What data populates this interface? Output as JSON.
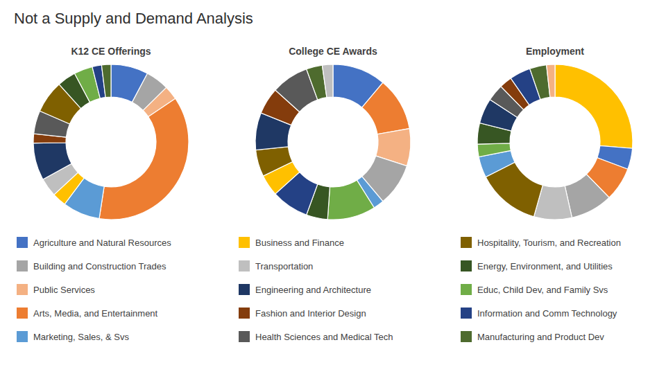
{
  "chart_data": [
    {
      "type": "pie",
      "title": "Not a Supply and Demand Analysis",
      "subtitle": "K12 CE Offerings",
      "legend": "bottom",
      "categories": [
        "Agriculture and Natural Resources",
        "Building and Construction Trades",
        "Public Services",
        "Arts, Media, and Entertainment",
        "Marketing, Sales, & Svs",
        "Business and Finance",
        "Transportation",
        "Engineering and Architecture",
        "Fashion and Interior Design",
        "Health Sciences and Medical Tech",
        "Hospitality, Tourism, and Recreation",
        "Energy, Environment, and Utilities",
        "Educ, Child Dev, and Family Svs",
        "Information and Comm Technology",
        "Manufacturing and Product Dev"
      ],
      "values": [
        8,
        5,
        3,
        38,
        8,
        3,
        4,
        8,
        2,
        5,
        7,
        4,
        4,
        2,
        2
      ],
      "colors": [
        "#4472c4",
        "#a5a5a5",
        "#f4b183",
        "#ed7d31",
        "#5b9bd5",
        "#ffc000",
        "#bfbfbf",
        "#1f3864",
        "#843c0c",
        "#595959",
        "#7f6000",
        "#375623",
        "#70ad47",
        "#244185",
        "#4e6b2e"
      ]
    },
    {
      "type": "pie",
      "subtitle": "College CE Awards",
      "categories": [
        "Agriculture and Natural Resources",
        "Arts, Media, and Entertainment",
        "Public Services",
        "Building and Construction Trades",
        "Marketing, Sales, & Svs",
        "Educ, Child Dev, and Family Svs",
        "Energy, Environment, and Utilities",
        "Information and Comm Technology",
        "Business and Finance",
        "Hospitality, Tourism, and Recreation",
        "Engineering and Architecture",
        "Fashion and Interior Design",
        "Health Sciences and Medical Tech",
        "Manufacturing and Product Dev",
        "Transportation"
      ],
      "values": [
        10,
        10,
        7,
        8,
        2,
        9,
        4,
        7,
        4,
        5,
        7,
        5,
        7,
        3,
        2
      ],
      "colors": [
        "#4472c4",
        "#ed7d31",
        "#f4b183",
        "#a5a5a5",
        "#5b9bd5",
        "#70ad47",
        "#375623",
        "#244185",
        "#ffc000",
        "#7f6000",
        "#1f3864",
        "#843c0c",
        "#595959",
        "#4e6b2e",
        "#bfbfbf"
      ]
    },
    {
      "type": "pie",
      "subtitle": "Employment",
      "categories": [
        "Business and Finance",
        "Agriculture and Natural Resources",
        "Arts, Media, and Entertainment",
        "Building and Construction Trades",
        "Transportation",
        "Hospitality, Tourism, and Recreation",
        "Marketing, Sales, & Svs",
        "Educ, Child Dev, and Family Svs",
        "Energy, Environment, and Utilities",
        "Engineering and Architecture",
        "Health Sciences and Medical Tech",
        "Fashion and Interior Design",
        "Information and Comm Technology",
        "Manufacturing and Product Dev",
        "Public Services"
      ],
      "values": [
        30,
        5,
        8,
        10,
        9,
        15,
        5,
        3,
        5,
        6,
        4,
        3,
        5,
        4,
        2
      ],
      "colors": [
        "#ffc000",
        "#4472c4",
        "#ed7d31",
        "#a5a5a5",
        "#bfbfbf",
        "#7f6000",
        "#5b9bd5",
        "#70ad47",
        "#375623",
        "#1f3864",
        "#595959",
        "#843c0c",
        "#244185",
        "#4e6b2e",
        "#f4b183"
      ]
    }
  ]
}
